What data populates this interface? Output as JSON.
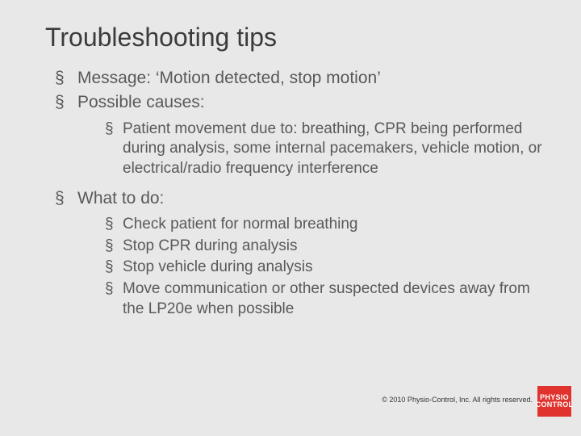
{
  "title": "Troubleshooting tips",
  "bullets_lvl1": [
    "Message: ‘Motion detected, stop motion’",
    "Possible causes:"
  ],
  "causes_sub": [
    "Patient movement due to: breathing, CPR being performed during analysis, some internal pacemakers, vehicle motion, or electrical/radio frequency interference"
  ],
  "what_to_do_label": "What to do:",
  "what_to_do_sub": [
    "Check patient for normal breathing",
    "Stop CPR during analysis",
    "Stop vehicle during analysis",
    "Move communication or other suspected devices away from the LP20e when possible"
  ],
  "footer": "© 2010 Physio-Control, Inc. All rights reserved.",
  "logo_lines": "PHYSIO\nCONTROL",
  "colors": {
    "background": "#e8e8e8",
    "title_text": "#3b3b3b",
    "body_text": "#595959",
    "logo_bg": "#e0332e",
    "logo_text": "#ffffff"
  },
  "typography": {
    "title_fontsize": 32,
    "lvl1_fontsize": 21,
    "lvl2_fontsize": 19,
    "footer_fontsize": 9,
    "font_family": "Arial"
  }
}
